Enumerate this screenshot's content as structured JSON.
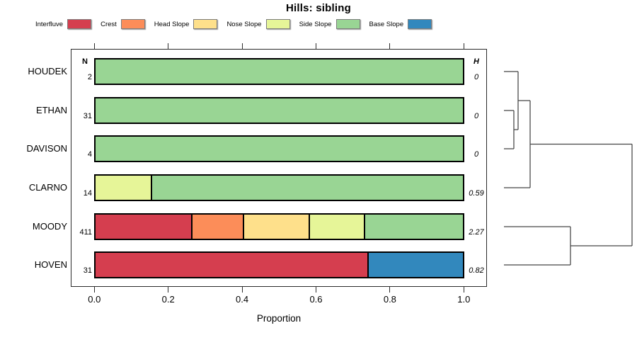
{
  "title": "Hills: sibling",
  "legend": {
    "items": [
      {
        "label": "Interfluve",
        "color": "#D53E4F"
      },
      {
        "label": "Crest",
        "color": "#FC8D59"
      },
      {
        "label": "Head Slope",
        "color": "#FEE08B"
      },
      {
        "label": "Nose Slope",
        "color": "#E6F598"
      },
      {
        "label": "Side Slope",
        "color": "#99D594"
      },
      {
        "label": "Base Slope",
        "color": "#3288BD"
      }
    ]
  },
  "columns": {
    "n_header": "N",
    "h_header": "H"
  },
  "axis": {
    "label": "Proportion",
    "ticks": [
      {
        "label": "0.0",
        "value": 0.0
      },
      {
        "label": "0.2",
        "value": 0.2
      },
      {
        "label": "0.4",
        "value": 0.4
      },
      {
        "label": "0.6",
        "value": 0.6
      },
      {
        "label": "0.8",
        "value": 0.8
      },
      {
        "label": "1.0",
        "value": 1.0
      }
    ]
  },
  "chart_data": {
    "type": "bar",
    "orientation": "horizontal_stacked",
    "title": "Hills: sibling",
    "xlabel": "Proportion",
    "xlim": [
      0,
      1
    ],
    "grid": false,
    "legend_position": "top",
    "categories": [
      "Interfluve",
      "Crest",
      "Head Slope",
      "Nose Slope",
      "Side Slope",
      "Base Slope"
    ],
    "palette": {
      "Interfluve": "#D53E4F",
      "Crest": "#FC8D59",
      "Head Slope": "#FEE08B",
      "Nose Slope": "#E6F598",
      "Side Slope": "#99D594",
      "Base Slope": "#3288BD"
    },
    "rows": [
      {
        "label": "HOUDEK",
        "N": "2",
        "H": "0",
        "segments": [
          {
            "category": "Side Slope",
            "proportion": 1.0
          }
        ]
      },
      {
        "label": "ETHAN",
        "N": "31",
        "H": "0",
        "segments": [
          {
            "category": "Side Slope",
            "proportion": 1.0
          }
        ]
      },
      {
        "label": "DAVISON",
        "N": "4",
        "H": "0",
        "segments": [
          {
            "category": "Side Slope",
            "proportion": 1.0
          }
        ]
      },
      {
        "label": "CLARNO",
        "N": "14",
        "H": "0.59",
        "segments": [
          {
            "category": "Nose Slope",
            "proportion": 0.15
          },
          {
            "category": "Side Slope",
            "proportion": 0.85
          }
        ]
      },
      {
        "label": "MOODY",
        "N": "411",
        "H": "2.27",
        "segments": [
          {
            "category": "Interfluve",
            "proportion": 0.26
          },
          {
            "category": "Crest",
            "proportion": 0.14
          },
          {
            "category": "Head Slope",
            "proportion": 0.18
          },
          {
            "category": "Nose Slope",
            "proportion": 0.15
          },
          {
            "category": "Side Slope",
            "proportion": 0.27
          }
        ]
      },
      {
        "label": "HOVEN",
        "N": "31",
        "H": "0.82",
        "segments": [
          {
            "category": "Interfluve",
            "proportion": 0.74
          },
          {
            "category": "Base Slope",
            "proportion": 0.26
          }
        ]
      }
    ]
  },
  "dendrogram": {
    "leaf_order": [
      "HOUDEK",
      "ETHAN",
      "DAVISON",
      "CLARNO",
      "MOODY",
      "HOVEN"
    ],
    "structure": "(((ETHAN,DAVISON),HOUDEK),CLARNO),(MOODY,HOVEN)",
    "segments": [
      [
        712,
        101,
        732,
        101
      ],
      [
        712,
        156,
        726,
        156
      ],
      [
        712,
        210,
        726,
        210
      ],
      [
        726,
        156,
        726,
        210
      ],
      [
        726,
        183,
        732,
        183
      ],
      [
        732,
        101,
        732,
        183
      ],
      [
        732,
        142,
        749,
        142
      ],
      [
        712,
        265,
        749,
        265
      ],
      [
        749,
        142,
        749,
        265
      ],
      [
        749,
        203.5,
        893,
        203.5
      ],
      [
        712,
        320,
        806,
        320
      ],
      [
        712,
        374,
        806,
        374
      ],
      [
        806,
        320,
        806,
        374
      ],
      [
        806,
        347,
        893,
        347
      ],
      [
        893,
        203.5,
        893,
        347
      ]
    ]
  }
}
